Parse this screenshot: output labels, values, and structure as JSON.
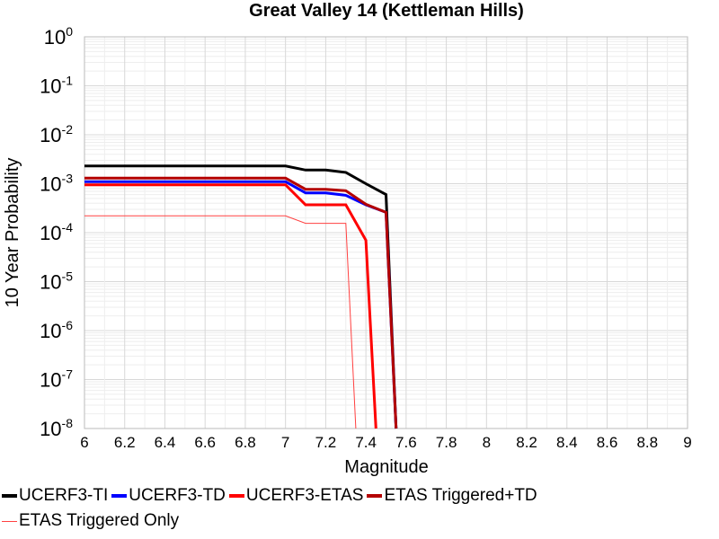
{
  "chart_data": {
    "type": "line",
    "title": "Great Valley 14 (Kettleman Hills)",
    "xlabel": "Magnitude",
    "ylabel": "10 Year Probability",
    "xlim": [
      6,
      9
    ],
    "ylim": [
      1e-08,
      1
    ],
    "yscale": "log",
    "grid": true,
    "legend_position": "bottom",
    "x_ticks": [
      "6",
      "6.2",
      "6.4",
      "6.6",
      "6.8",
      "7",
      "7.2",
      "7.4",
      "7.6",
      "7.8",
      "8",
      "8.2",
      "8.4",
      "8.6",
      "8.8",
      "9"
    ],
    "y_ticks": [
      {
        "base": "10",
        "exp": "0"
      },
      {
        "base": "10",
        "exp": "-1"
      },
      {
        "base": "10",
        "exp": "-2"
      },
      {
        "base": "10",
        "exp": "-3"
      },
      {
        "base": "10",
        "exp": "-4"
      },
      {
        "base": "10",
        "exp": "-5"
      },
      {
        "base": "10",
        "exp": "-6"
      },
      {
        "base": "10",
        "exp": "-7"
      },
      {
        "base": "10",
        "exp": "-8"
      }
    ],
    "series": [
      {
        "name": "UCERF3-TI",
        "color": "#000000",
        "width": 3,
        "x": [
          6.0,
          7.0,
          7.1,
          7.2,
          7.3,
          7.4,
          7.5,
          7.55
        ],
        "y": [
          0.0023,
          0.0023,
          0.0019,
          0.0019,
          0.0017,
          0.001,
          0.0006,
          1e-08
        ]
      },
      {
        "name": "UCERF3-TD",
        "color": "#0000ff",
        "width": 3,
        "x": [
          6.0,
          7.0,
          7.1,
          7.2,
          7.3,
          7.4,
          7.5,
          7.55
        ],
        "y": [
          0.0011,
          0.0011,
          0.00065,
          0.00065,
          0.00058,
          0.00037,
          0.00026,
          1e-08
        ]
      },
      {
        "name": "UCERF3-ETAS",
        "color": "#ff0000",
        "width": 3,
        "x": [
          6.0,
          7.0,
          7.1,
          7.2,
          7.3,
          7.4,
          7.45
        ],
        "y": [
          0.00095,
          0.00095,
          0.00037,
          0.00037,
          0.00037,
          7e-05,
          1e-08
        ]
      },
      {
        "name": "ETAS Triggered+TD",
        "color": "#b40000",
        "width": 3,
        "x": [
          6.0,
          7.0,
          7.1,
          7.2,
          7.3,
          7.4,
          7.5,
          7.55
        ],
        "y": [
          0.0013,
          0.0013,
          0.00077,
          0.00077,
          0.00072,
          0.00038,
          0.00026,
          1e-08
        ]
      },
      {
        "name": "ETAS Triggered Only",
        "color": "#ff4040",
        "width": 1,
        "x": [
          6.0,
          7.0,
          7.1,
          7.2,
          7.3,
          7.35
        ],
        "y": [
          0.00022,
          0.00022,
          0.000155,
          0.000155,
          0.000155,
          1e-08
        ]
      }
    ]
  },
  "legend": [
    {
      "label": "UCERF3-TI",
      "color": "#000000",
      "thickness": 4
    },
    {
      "label": "UCERF3-TD",
      "color": "#0000ff",
      "thickness": 4
    },
    {
      "label": "UCERF3-ETAS",
      "color": "#ff0000",
      "thickness": 4
    },
    {
      "label": "ETAS Triggered+TD",
      "color": "#b40000",
      "thickness": 4
    },
    {
      "label": "ETAS Triggered Only",
      "color": "#ff4040",
      "thickness": 1
    }
  ]
}
